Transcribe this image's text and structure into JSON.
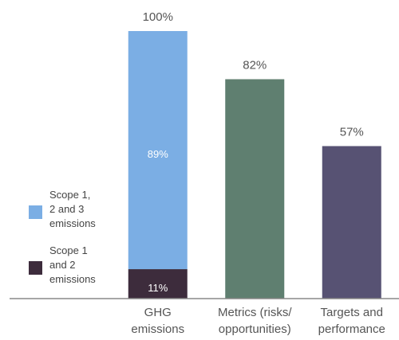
{
  "chart_data": {
    "type": "bar",
    "categories": [
      "GHG\nemissions",
      "Metrics (risks/\nopportunities)",
      "Targets and\nperformance"
    ],
    "series": [
      {
        "name": "Scope 1\nand 2\nemissions",
        "color": "#3d2c3c",
        "values": [
          11,
          null,
          null
        ],
        "value_labels": [
          "11%",
          null,
          null
        ]
      },
      {
        "name": "Scope 1,\n2 and 3\nemissions",
        "color": "#7baee4",
        "values": [
          89,
          null,
          null
        ],
        "value_labels": [
          "89%",
          null,
          null
        ]
      },
      {
        "color": "#5f7f70",
        "values": [
          null,
          82,
          null
        ]
      },
      {
        "color": "#575273",
        "values": [
          null,
          null,
          57
        ]
      }
    ],
    "totals": [
      100,
      82,
      57
    ],
    "total_labels": [
      "100%",
      "82%",
      "57%"
    ],
    "ylim": [
      0,
      100
    ]
  }
}
